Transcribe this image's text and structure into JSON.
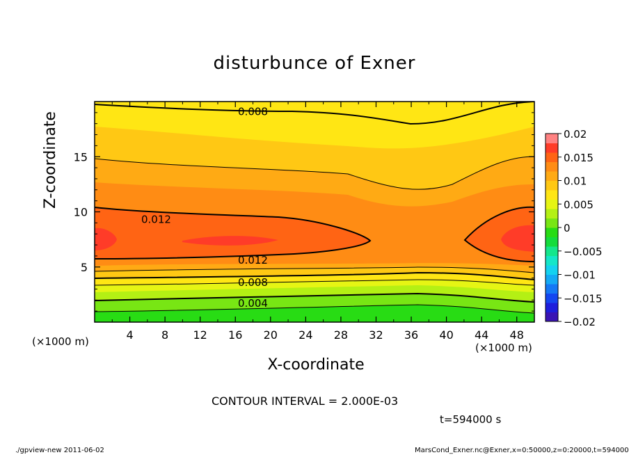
{
  "chart_data": {
    "type": "contour",
    "title": "disturbunce of Exner",
    "xlabel": "X-coordinate",
    "ylabel": "Z-coordinate",
    "x_unit": "(×1000 m)",
    "xlim": [
      0,
      50
    ],
    "ylim": [
      0,
      20
    ],
    "x_ticks": [
      4,
      8,
      12,
      16,
      20,
      24,
      28,
      32,
      36,
      40,
      44,
      48
    ],
    "y_ticks": [
      5,
      10,
      15
    ],
    "contour_interval_text": "CONTOUR INTERVAL = 2.000E-03",
    "contour_labels": [
      {
        "text": "0.008",
        "x": 18,
        "z": 19.1
      },
      {
        "text": "0.012",
        "x": 7,
        "z": 9.3
      },
      {
        "text": "0.012",
        "x": 18,
        "z": 5.6
      },
      {
        "text": "0.008",
        "x": 18,
        "z": 3.6
      },
      {
        "text": "0.004",
        "x": 18,
        "z": 1.7
      }
    ],
    "colorbar": {
      "ticks": [
        "0.02",
        "0.015",
        "0.01",
        "0.005",
        "0",
        "−0.005",
        "−0.01",
        "−0.015",
        "−0.02"
      ],
      "levels": [
        -0.02,
        -0.018,
        -0.016,
        -0.014,
        -0.012,
        -0.01,
        -0.008,
        -0.006,
        -0.004,
        -0.002,
        0,
        0.002,
        0.004,
        0.006,
        0.008,
        0.01,
        0.012,
        0.014,
        0.016,
        0.018,
        0.02
      ],
      "colors": [
        "#5a0a8c",
        "#3a14b4",
        "#1e1edc",
        "#1446f0",
        "#1478f5",
        "#14aaf5",
        "#14d2f0",
        "#14e6c8",
        "#14e68c",
        "#14dc3c",
        "#28dc14",
        "#78e614",
        "#b4f014",
        "#e6f514",
        "#ffe614",
        "#ffc814",
        "#ffaa14",
        "#ff8c14",
        "#ff6414",
        "#ff3c28",
        "#ff8282"
      ]
    },
    "field_description_bands": [
      {
        "level": 0.002,
        "z_range": [
          0,
          1.2
        ]
      },
      {
        "level": 0.004,
        "z_range": [
          1.2,
          2.3
        ]
      },
      {
        "level": 0.006,
        "z_range": [
          2.3,
          3.0
        ]
      },
      {
        "level": 0.008,
        "z_range": [
          3.0,
          4.0
        ]
      },
      {
        "level": 0.01,
        "z_range": [
          4.0,
          5.0
        ]
      },
      {
        "level": 0.012,
        "z_range": [
          5.0,
          9.8
        ]
      },
      {
        "level": 0.014,
        "z_range": [
          6.5,
          8.5
        ]
      }
    ]
  },
  "annotations": {
    "time": "t=594000 s",
    "footer_left": "./gpview-new   2011-06-02",
    "footer_right": "MarsCond_Exner.nc@Exner,x=0:50000,z=0:20000,t=594000"
  }
}
